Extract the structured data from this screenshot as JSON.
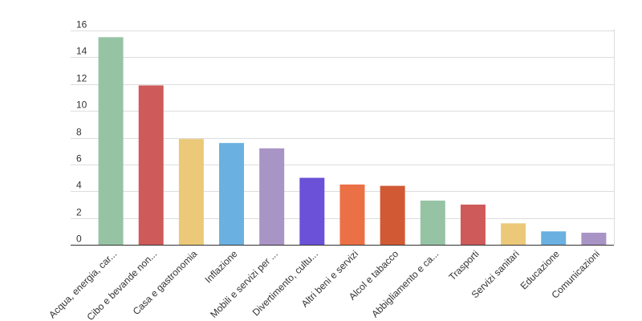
{
  "chart_data": {
    "type": "bar",
    "title": "",
    "xlabel": "",
    "ylabel": "",
    "ylim": [
      0,
      16
    ],
    "yticks": [
      0,
      2,
      4,
      6,
      8,
      10,
      12,
      14,
      16
    ],
    "grid": true,
    "legend": "none",
    "categories": [
      "Acqua, energia, car...",
      "Cibo e bevande non...",
      "Casa e gastronomia",
      "Inflazione",
      "Mobili e servizi per ...",
      "Divertimento, cultu...",
      "Altri beni e servizi",
      "Alcol e tabacco",
      "Abbigliamento e ca...",
      "Trasporti",
      "Servizi sanitari",
      "Educazione",
      "Comunicazioni"
    ],
    "values": [
      15.5,
      11.9,
      7.9,
      7.6,
      7.2,
      5.0,
      4.5,
      4.4,
      3.3,
      3.0,
      1.6,
      1.0,
      0.9
    ],
    "colors": [
      "#97c3a5",
      "#cf5a5a",
      "#ebc978",
      "#6ab0e0",
      "#a994c6",
      "#6a51d8",
      "#ec7046",
      "#d15a34",
      "#97c3a5",
      "#cf5a5a",
      "#ebc978",
      "#6ab0e0",
      "#a994c6"
    ]
  }
}
